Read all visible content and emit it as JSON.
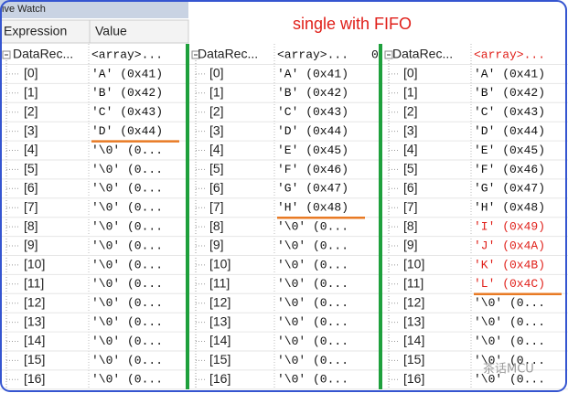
{
  "window_title": "ive Watch",
  "annotation": "single with FIFO",
  "watermark": "茶话MCU",
  "header": {
    "expression": "Expression",
    "value": "Value"
  },
  "panels": [
    {
      "root": {
        "expression": "DataRec...",
        "value": "<array>..."
      },
      "rows": [
        {
          "expression": "[0]",
          "value": "'A' (0x41)"
        },
        {
          "expression": "[1]",
          "value": "'B' (0x42)"
        },
        {
          "expression": "[2]",
          "value": "'C' (0x43)"
        },
        {
          "expression": "[3]",
          "value": "'D' (0x44)",
          "underlined": true
        },
        {
          "expression": "[4]",
          "value": "'\\0' (0..."
        },
        {
          "expression": "[5]",
          "value": "'\\0' (0..."
        },
        {
          "expression": "[6]",
          "value": "'\\0' (0..."
        },
        {
          "expression": "[7]",
          "value": "'\\0' (0..."
        },
        {
          "expression": "[8]",
          "value": "'\\0' (0..."
        },
        {
          "expression": "[9]",
          "value": "'\\0' (0..."
        },
        {
          "expression": "[10]",
          "value": "'\\0' (0..."
        },
        {
          "expression": "[11]",
          "value": "'\\0' (0..."
        },
        {
          "expression": "[12]",
          "value": "'\\0' (0..."
        },
        {
          "expression": "[13]",
          "value": "'\\0' (0..."
        },
        {
          "expression": "[14]",
          "value": "'\\0' (0..."
        },
        {
          "expression": "[15]",
          "value": "'\\0' (0..."
        },
        {
          "expression": "[16]",
          "value": "'\\0' (0..."
        }
      ]
    },
    {
      "root": {
        "expression": "DataRec...",
        "value": "<array>...",
        "next": "0"
      },
      "rows": [
        {
          "expression": "[0]",
          "value": "'A' (0x41)"
        },
        {
          "expression": "[1]",
          "value": "'B' (0x42)"
        },
        {
          "expression": "[2]",
          "value": "'C' (0x43)"
        },
        {
          "expression": "[3]",
          "value": "'D' (0x44)"
        },
        {
          "expression": "[4]",
          "value": "'E' (0x45)"
        },
        {
          "expression": "[5]",
          "value": "'F' (0x46)"
        },
        {
          "expression": "[6]",
          "value": "'G' (0x47)"
        },
        {
          "expression": "[7]",
          "value": "'H' (0x48)",
          "underlined": true
        },
        {
          "expression": "[8]",
          "value": "'\\0' (0..."
        },
        {
          "expression": "[9]",
          "value": "'\\0' (0..."
        },
        {
          "expression": "[10]",
          "value": "'\\0' (0..."
        },
        {
          "expression": "[11]",
          "value": "'\\0' (0..."
        },
        {
          "expression": "[12]",
          "value": "'\\0' (0..."
        },
        {
          "expression": "[13]",
          "value": "'\\0' (0..."
        },
        {
          "expression": "[14]",
          "value": "'\\0' (0..."
        },
        {
          "expression": "[15]",
          "value": "'\\0' (0..."
        },
        {
          "expression": "[16]",
          "value": "'\\0' (0..."
        }
      ]
    },
    {
      "root": {
        "expression": "DataRec...",
        "value": "<array>...",
        "color": "#e0201a"
      },
      "rows": [
        {
          "expression": "[0]",
          "value": "'A' (0x41)"
        },
        {
          "expression": "[1]",
          "value": "'B' (0x42)"
        },
        {
          "expression": "[2]",
          "value": "'C' (0x43)"
        },
        {
          "expression": "[3]",
          "value": "'D' (0x44)"
        },
        {
          "expression": "[4]",
          "value": "'E' (0x45)"
        },
        {
          "expression": "[5]",
          "value": "'F' (0x46)"
        },
        {
          "expression": "[6]",
          "value": "'G' (0x47)"
        },
        {
          "expression": "[7]",
          "value": "'H' (0x48)"
        },
        {
          "expression": "[8]",
          "value": "'I' (0x49)",
          "color": "#e0201a"
        },
        {
          "expression": "[9]",
          "value": "'J' (0x4A)",
          "color": "#e0201a"
        },
        {
          "expression": "[10]",
          "value": "'K' (0x4B)",
          "color": "#e0201a"
        },
        {
          "expression": "[11]",
          "value": "'L' (0x4C)",
          "color": "#e0201a",
          "underlined": true
        },
        {
          "expression": "[12]",
          "value": "'\\0' (0..."
        },
        {
          "expression": "[13]",
          "value": "'\\0' (0..."
        },
        {
          "expression": "[14]",
          "value": "'\\0' (0..."
        },
        {
          "expression": "[15]",
          "value": "'\\0' (0..."
        },
        {
          "expression": "[16]",
          "value": "'\\0' (0..."
        }
      ]
    }
  ]
}
